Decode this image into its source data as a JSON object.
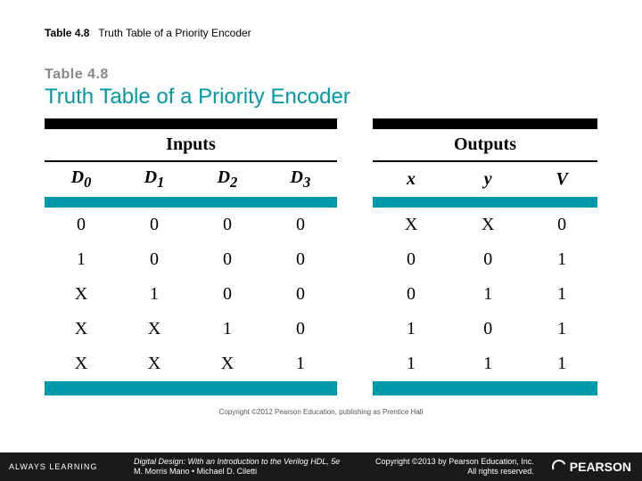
{
  "caption": {
    "label": "Table 4.8",
    "text": "Truth Table of a Priority Encoder"
  },
  "figure": {
    "label": "Table 4.8",
    "title": "Truth Table of a Priority Encoder",
    "title_color": "#0099aa",
    "group_headers": {
      "inputs": "Inputs",
      "outputs": "Outputs"
    },
    "columns": {
      "d0": "D",
      "d0s": "0",
      "d1": "D",
      "d1s": "1",
      "d2": "D",
      "d2s": "2",
      "d3": "D",
      "d3s": "3",
      "x": "x",
      "y": "y",
      "v": "V"
    },
    "rows": [
      {
        "d0": "0",
        "d1": "0",
        "d2": "0",
        "d3": "0",
        "x": "X",
        "y": "X",
        "v": "0"
      },
      {
        "d0": "1",
        "d1": "0",
        "d2": "0",
        "d3": "0",
        "x": "0",
        "y": "0",
        "v": "1"
      },
      {
        "d0": "X",
        "d1": "1",
        "d2": "0",
        "d3": "0",
        "x": "0",
        "y": "1",
        "v": "1"
      },
      {
        "d0": "X",
        "d1": "X",
        "d2": "1",
        "d3": "0",
        "x": "1",
        "y": "0",
        "v": "1"
      },
      {
        "d0": "X",
        "d1": "X",
        "d2": "X",
        "d3": "1",
        "x": "1",
        "y": "1",
        "v": "1"
      }
    ],
    "fig_copyright": "Copyright ©2012 Pearson Education, publishing as Prentice Hall"
  },
  "footer": {
    "always": "ALWAYS LEARNING",
    "book_title": "Digital Design: With an Introduction to the Verilog HDL, 5e",
    "authors": "M. Morris Mano • Michael D. Ciletti",
    "copyright": "Copyright ©2013 by Pearson Education, Inc.",
    "rights": "All rights reserved.",
    "brand": "PEARSON"
  }
}
